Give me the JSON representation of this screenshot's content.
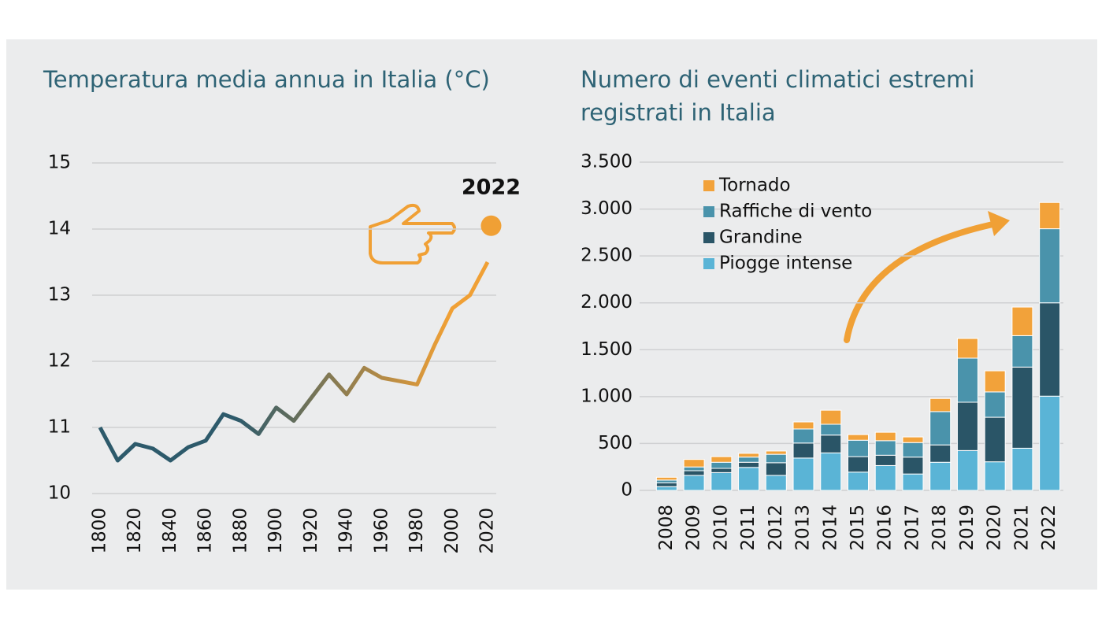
{
  "chart_data": [
    {
      "type": "line",
      "title": "Temperatura media annua in Italia (°C)",
      "x": [
        1800,
        1810,
        1820,
        1830,
        1840,
        1850,
        1860,
        1870,
        1880,
        1890,
        1900,
        1910,
        1920,
        1930,
        1940,
        1950,
        1960,
        1970,
        1980,
        1990,
        2000,
        2010,
        2020
      ],
      "values": [
        11.0,
        10.5,
        10.75,
        10.68,
        10.5,
        10.7,
        10.8,
        11.2,
        11.1,
        10.9,
        11.3,
        11.1,
        11.45,
        11.8,
        11.5,
        11.9,
        11.75,
        11.7,
        11.65,
        12.25,
        12.8,
        13.0,
        13.5
      ],
      "colors": [
        "#2d5a6b",
        "#f0a035"
      ],
      "xlim": [
        1800,
        2020
      ],
      "xticks": [
        1800,
        1820,
        1840,
        1860,
        1880,
        1900,
        1920,
        1940,
        1960,
        1980,
        2000,
        2020
      ],
      "ylim": [
        10,
        15
      ],
      "yticks": [
        10,
        11,
        12,
        13,
        14,
        15
      ],
      "grid": true,
      "highlight": {
        "x": 2022,
        "value": 14.05,
        "label": "2022",
        "color": "#f0a035"
      }
    },
    {
      "type": "stacked_bar",
      "title": "Numero di eventi climatici estremi registrati in Italia",
      "categories": [
        "2008",
        "2009",
        "2010",
        "2011",
        "2012",
        "2013",
        "2014",
        "2015",
        "2016",
        "2017",
        "2018",
        "2019",
        "2020",
        "2021",
        "2022"
      ],
      "series": [
        {
          "name": "Piogge intense",
          "color": "#5ab4d6",
          "values": [
            40,
            160,
            190,
            245,
            160,
            345,
            400,
            195,
            265,
            175,
            300,
            425,
            305,
            450,
            1005
          ]
        },
        {
          "name": "Grandine",
          "color": "#2a5567",
          "values": [
            40,
            50,
            45,
            55,
            135,
            160,
            190,
            165,
            110,
            180,
            185,
            515,
            475,
            865,
            995
          ]
        },
        {
          "name": "Raffiche di vento",
          "color": "#4a93ab",
          "values": [
            30,
            40,
            65,
            55,
            90,
            150,
            115,
            175,
            155,
            155,
            355,
            470,
            270,
            335,
            790
          ]
        },
        {
          "name": "Tornado",
          "color": "#f2a23a",
          "values": [
            30,
            80,
            60,
            40,
            35,
            75,
            150,
            60,
            90,
            60,
            140,
            210,
            225,
            305,
            280
          ]
        }
      ],
      "ylim": [
        0,
        3500
      ],
      "yticks": [
        0,
        500,
        {
          "value": 1000,
          "label": "1.000"
        },
        {
          "value": 1500,
          "label": "1.500"
        },
        {
          "value": 2000,
          "label": "2.000"
        },
        {
          "value": 2500,
          "label": "2.500"
        },
        {
          "value": 3000,
          "label": "3.000"
        },
        {
          "value": 3500,
          "label": "3.500"
        }
      ],
      "grid": true,
      "legend": "top-left"
    }
  ]
}
